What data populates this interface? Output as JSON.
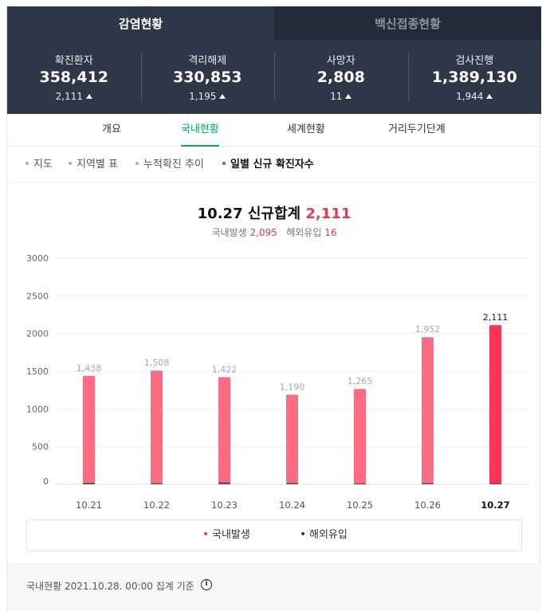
{
  "top_tabs": [
    {
      "label": "감염현황"
    },
    {
      "label": "백신접종현황"
    }
  ],
  "stats": [
    {
      "label": "확진환자",
      "value": "358,412",
      "delta": "2,111"
    },
    {
      "label": "격리해제",
      "value": "330,853",
      "delta": "1,195"
    },
    {
      "label": "사망자",
      "value": "2,808",
      "delta": "11"
    },
    {
      "label": "검사진행",
      "value": "1,389,130",
      "delta": "1,944"
    }
  ],
  "sub_tabs": [
    "개요",
    "국내현황",
    "세계현황",
    "거리두기단계"
  ],
  "filters": [
    "지도",
    "지역별 표",
    "누적확진 추이",
    "일별 신규 확진자수"
  ],
  "summary": {
    "date": "10.27",
    "title": "신규합계",
    "total": "2,111",
    "domestic_label": "국내발생",
    "domestic_value": "2,095",
    "overseas_label": "해외유입",
    "overseas_value": "16"
  },
  "chart_data": {
    "type": "bar",
    "stacked": true,
    "categories": [
      "10.21",
      "10.22",
      "10.23",
      "10.24",
      "10.25",
      "10.26",
      "10.27"
    ],
    "totals": [
      1438,
      1508,
      1422,
      1190,
      1265,
      1952,
      2111
    ],
    "total_labels": [
      "1,438",
      "1,508",
      "1,422",
      "1,190",
      "1,265",
      "1,952",
      "2,111"
    ],
    "series": [
      {
        "name": "국내발생",
        "values": [
          1417,
          1490,
          1395,
          1170,
          1250,
          1933,
          2095
        ],
        "color": "#ff6b81",
        "highlight_color": "#ff3352"
      },
      {
        "name": "해외유입",
        "values": [
          21,
          18,
          27,
          20,
          15,
          19,
          16
        ],
        "color": "#555a66"
      }
    ],
    "ylim": [
      0,
      3000
    ],
    "yticks": [
      0,
      500,
      1000,
      1500,
      2000,
      2500,
      3000
    ],
    "highlight_index": 6,
    "grid": true,
    "legend_position": "bottom"
  },
  "footer": {
    "text": "국내현황 2021.10.28. 00:00 집계 기준",
    "info_icon": "info-icon"
  }
}
